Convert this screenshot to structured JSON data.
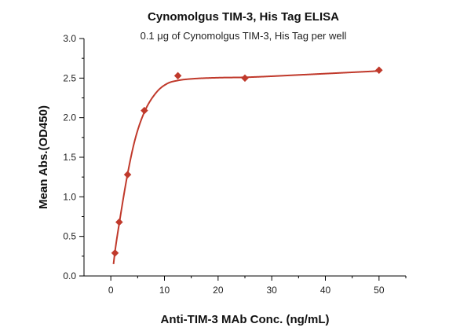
{
  "chart_data": {
    "type": "scatter",
    "title": "Cynomolgus TIM-3, His Tag ELISA",
    "subtitle": "0.1 μg of Cynomolgus TIM-3, His Tag per well",
    "xlabel": "Anti-TIM-3 MAb Conc. (ng/mL)",
    "ylabel": "Mean Abs.(OD450)",
    "xlim": [
      -5,
      55
    ],
    "ylim": [
      0,
      3.0
    ],
    "x_ticks": [
      0,
      10,
      20,
      30,
      40,
      50
    ],
    "y_ticks": [
      0.0,
      0.5,
      1.0,
      1.5,
      2.0,
      2.5,
      3.0
    ],
    "x_tick_labels": [
      "0",
      "10",
      "20",
      "30",
      "40",
      "50"
    ],
    "y_tick_labels": [
      "0.0",
      "0.5",
      "1.0",
      "1.5",
      "2.0",
      "2.5",
      "3.0"
    ],
    "grid": false,
    "legend": "none",
    "color": "#c0392b",
    "marker": "diamond",
    "series": [
      {
        "x": [
          0.78,
          1.56,
          3.13,
          6.25,
          12.5,
          25,
          50
        ],
        "y": [
          0.29,
          0.68,
          1.28,
          2.09,
          2.53,
          2.5,
          2.6
        ],
        "fit": "four-parameter logistic curve"
      }
    ]
  }
}
